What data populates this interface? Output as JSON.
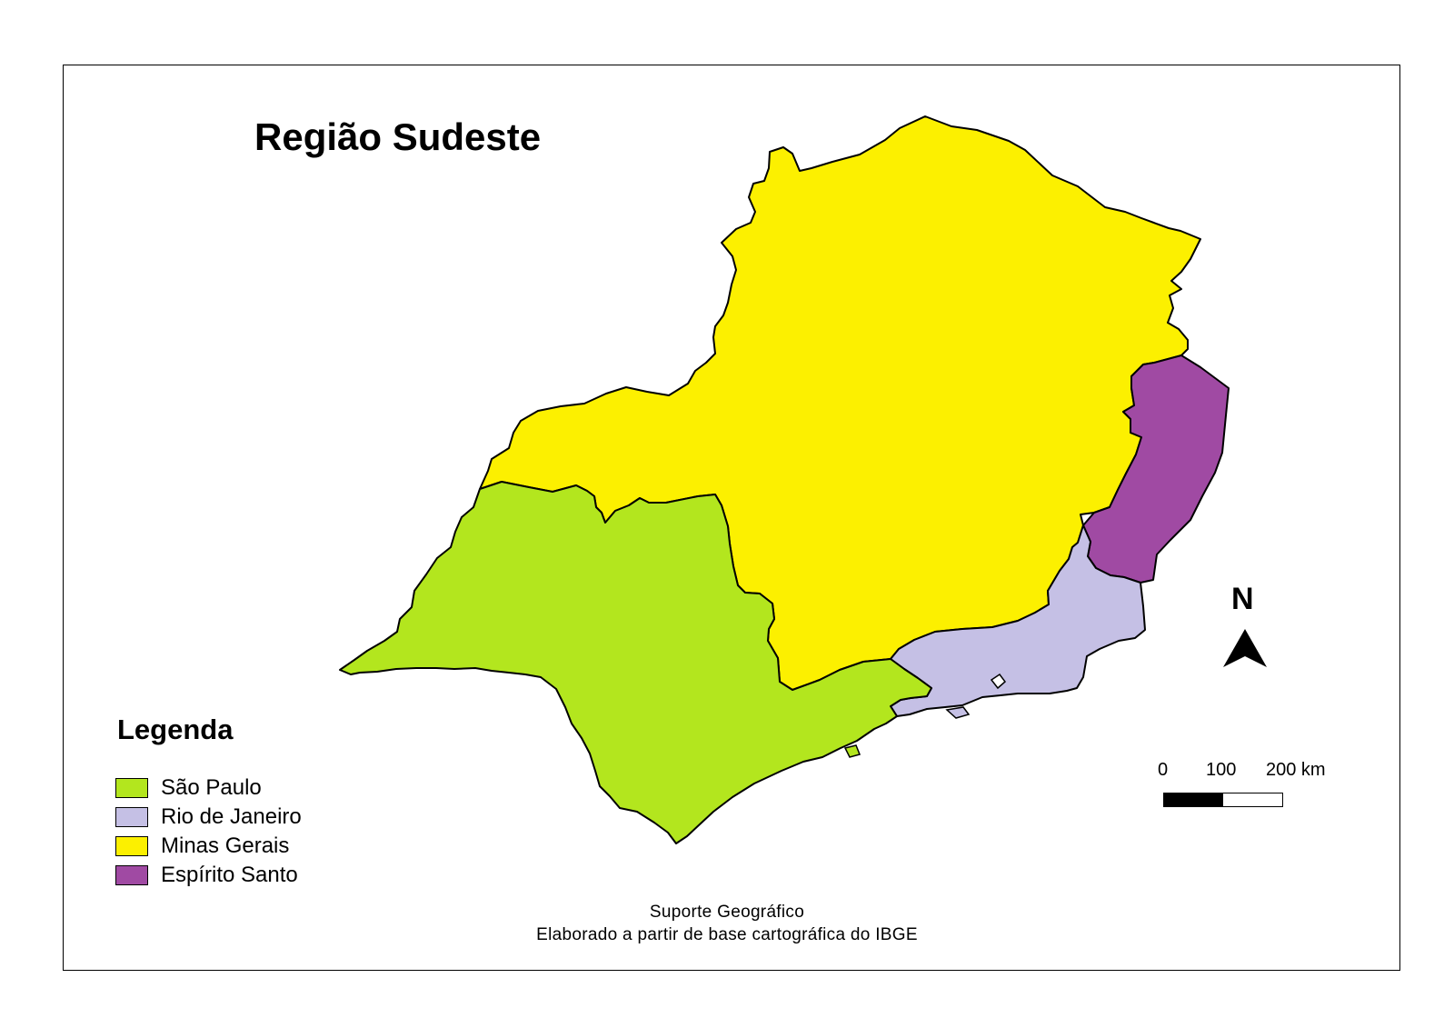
{
  "map": {
    "title": "Região Sudeste",
    "legend": {
      "title": "Legenda",
      "items": [
        {
          "id": "sp",
          "label": "São Paulo",
          "color": "#b3e61e"
        },
        {
          "id": "rj",
          "label": "Rio de Janeiro",
          "color": "#c5c0e5"
        },
        {
          "id": "mg",
          "label": "Minas Gerais",
          "color": "#fcf000"
        },
        {
          "id": "es",
          "label": "Espírito Santo",
          "color": "#a04aa3"
        }
      ]
    },
    "north_arrow": {
      "letter": "N"
    },
    "scale_bar": {
      "labels": [
        "0",
        "100",
        "200 km"
      ]
    },
    "credits": {
      "line1": "Suporte Geográfico",
      "line2": "Elaborado a partir de base cartográfica do IBGE"
    }
  }
}
